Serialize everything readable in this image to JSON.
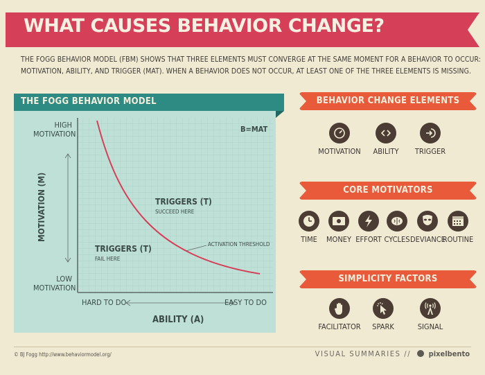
{
  "title": "WHAT CAUSES BEHAVIOR CHANGE?",
  "intro": {
    "line1": "THE FOGG BEHAVIOR MODEL (FBM) SHOWS THAT THREE ELEMENTS MUST CONVERGE AT THE SAME MOMENT FOR A BEHAVIOR TO OCCUR:",
    "line2": "MOTIVATION, ABILITY, AND TRIGGER (MAT). WHEN A BEHAVIOR DOES NOT OCCUR, AT LEAST ONE OF THE THREE ELEMENTS IS MISSING."
  },
  "model": {
    "header": "THE FOGG BEHAVIOR MODEL",
    "formula": "B=MAT",
    "y_high": "HIGH MOTIVATION",
    "y_high_1": "HIGH",
    "y_high_2": "MOTIVATION",
    "y_low_1": "LOW",
    "y_low_2": "MOTIVATION",
    "y_axis": "MOTIVATION (M)",
    "x_hard": "HARD TO DO",
    "x_easy": "EASY TO DO",
    "x_axis": "ABILITY (A)",
    "trig_succeed_title": "TRIGGERS (T)",
    "trig_succeed_sub": "SUCCEED HERE",
    "trig_fail_title": "TRIGGERS (T)",
    "trig_fail_sub": "FAIL HERE",
    "threshold": "ACTIVATION THRESHOLD",
    "colors": {
      "panel": "#bfe0d6",
      "curve": "#d63f58",
      "header": "#2d8b83"
    }
  },
  "elements": {
    "header": "BEHAVIOR CHANGE ELEMENTS",
    "items": [
      {
        "label": "MOTIVATION",
        "icon": "gauge-icon"
      },
      {
        "label": "ABILITY",
        "icon": "code-brackets-icon"
      },
      {
        "label": "TRIGGER",
        "icon": "enter-arrow-icon"
      }
    ]
  },
  "motivators": {
    "header": "CORE MOTIVATORS",
    "items": [
      {
        "label": "TIME",
        "icon": "clock-icon"
      },
      {
        "label": "MONEY",
        "icon": "money-bill-icon"
      },
      {
        "label": "EFFORT",
        "icon": "lightning-icon"
      },
      {
        "label": "CYCLES",
        "icon": "brain-icon"
      },
      {
        "label": "DEVIANCE",
        "icon": "mask-icon"
      },
      {
        "label": "ROUTINE",
        "icon": "calendar-icon"
      }
    ]
  },
  "simplicity": {
    "header": "SIMPLICITY FACTORS",
    "items": [
      {
        "label": "FACILITATOR",
        "icon": "hand-icon"
      },
      {
        "label": "SPARK",
        "icon": "cursor-spark-icon"
      },
      {
        "label": "SIGNAL",
        "icon": "broadcast-tower-icon"
      }
    ]
  },
  "footer": {
    "credit": "© BJ Fogg http://www.behaviormodel.org/",
    "summaries": "VISUAL SUMMARIES //",
    "brand": "pixelbento"
  }
}
